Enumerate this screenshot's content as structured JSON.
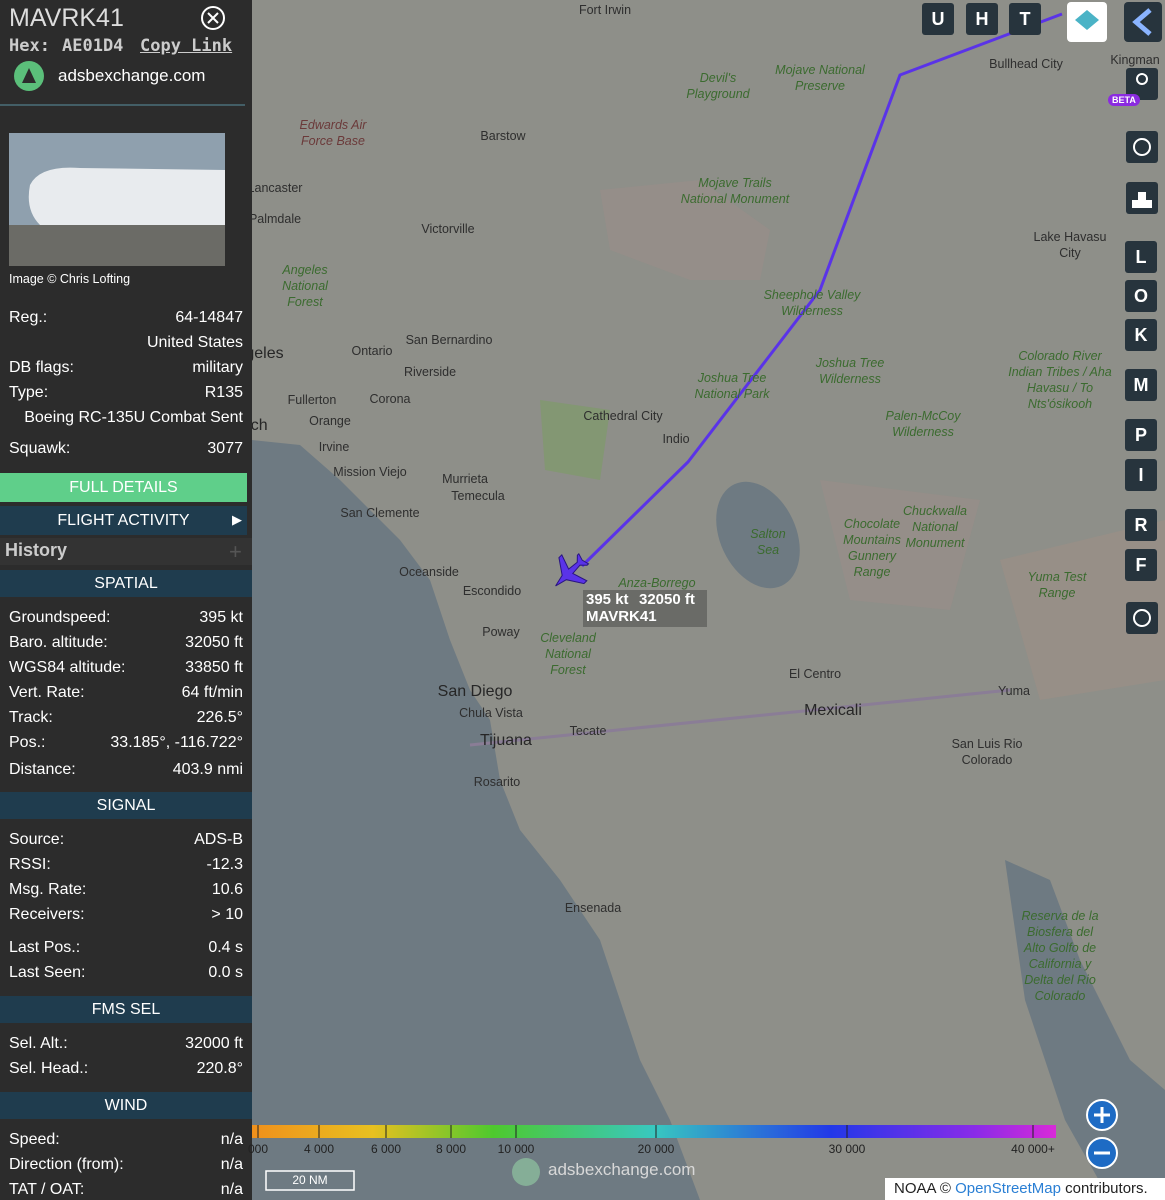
{
  "sidebar": {
    "callsign": "MAVRK41",
    "hex_label": "Hex:",
    "hex": "AE01D4",
    "copy_link": "Copy Link",
    "site": "adsbexchange.com",
    "image_credit": "Image © Chris Lofting",
    "details": [
      {
        "label": "Reg.:",
        "value": "64-14847"
      },
      {
        "value": "United States"
      },
      {
        "label": "DB flags:",
        "value": "military"
      },
      {
        "label": "Type:",
        "value": "R135"
      },
      {
        "value": "Boeing RC-135U Combat Sent"
      },
      {
        "label": "Squawk:",
        "value": "3077"
      }
    ],
    "full_details": "FULL DETAILS",
    "flight_activity": "FLIGHT ACTIVITY",
    "history": "History",
    "sections": [
      {
        "title": "SPATIAL",
        "rows": [
          {
            "label": "Groundspeed:",
            "value": "395 kt"
          },
          {
            "label": "Baro. altitude:",
            "value": "32050 ft"
          },
          {
            "label": "WGS84 altitude:",
            "value": "33850 ft"
          },
          {
            "label": "Vert. Rate:",
            "value": "64 ft/min"
          },
          {
            "label": "Track:",
            "value": "226.5°"
          },
          {
            "label": "Pos.:",
            "value": "33.185°, -116.722°"
          },
          {
            "label": "Distance:",
            "value": "403.9 nmi"
          }
        ]
      },
      {
        "title": "SIGNAL",
        "rows": [
          {
            "label": "Source:",
            "value": "ADS-B"
          },
          {
            "label": "RSSI:",
            "value": "-12.3"
          },
          {
            "label": "Msg. Rate:",
            "value": "10.6"
          },
          {
            "label": "Receivers:",
            "value": "> 10"
          },
          {
            "label": "Last Pos.:",
            "value": "0.4 s"
          },
          {
            "label": "Last Seen:",
            "value": "0.0 s"
          }
        ]
      },
      {
        "title": "FMS SEL",
        "rows": [
          {
            "label": "Sel. Alt.:",
            "value": "32000 ft"
          },
          {
            "label": "Sel. Head.:",
            "value": "220.8°"
          }
        ]
      },
      {
        "title": "WIND",
        "rows": [
          {
            "label": "Speed:",
            "value": "n/a"
          },
          {
            "label": "Direction (from):",
            "value": "n/a"
          },
          {
            "label": "TAT / OAT:",
            "value": "n/a"
          }
        ]
      }
    ]
  },
  "map": {
    "labels": [
      "Fort Irwin",
      "Devil's Playground",
      "Mojave National Preserve",
      "Bullhead City",
      "Kingman",
      "Edwards Air Force Base",
      "Barstow",
      "Mojave Trails National Monument",
      "Lancaster",
      "Palmdale",
      "Victorville",
      "Lake Havasu City",
      "Angeles National Forest",
      "Sheephole Valley Wilderness",
      "Ontario",
      "San Bernardino",
      "Los Angeles",
      "Riverside",
      "Joshua Tree Wilderness",
      "Colorado River Indian Tribes / Aha Havasu / To Nts'ósikooh",
      "Fullerton",
      "Corona",
      "Joshua Tree National Park",
      "Long Beach",
      "Orange",
      "Cathedral City",
      "Palen-McCoy Wilderness",
      "Indio",
      "Irvine",
      "Mission Viejo",
      "Murrieta",
      "Temecula",
      "San Clemente",
      "Salton Sea",
      "Chocolate Mountains Gunnery Range",
      "Chuckwalla National Monument",
      "Oceanside",
      "Escondido",
      "Anza-Borrego",
      "Yuma Test Range",
      "Poway",
      "Cleveland National Forest",
      "El Centro",
      "Yuma",
      "San Diego",
      "Mexicali",
      "Chula Vista",
      "Tecate",
      "Tijuana",
      "San Luis Rio Colorado",
      "Rosarito",
      "Ensenada",
      "Reserva de la Biosfera del Alto Golfo de California y Delta del Rio Colorado"
    ],
    "aircraft": {
      "speed": "395 kt",
      "altitude": "32050 ft",
      "callsign": "MAVRK41"
    },
    "buttons_top": [
      "U",
      "H",
      "T"
    ],
    "buttons_side": [
      "L",
      "O",
      "K",
      "M",
      "P",
      "I",
      "R",
      "F"
    ],
    "beta": "BETA",
    "altitude_scale": [
      "000",
      "4 000",
      "6 000",
      "8 000",
      "10 000",
      "20 000",
      "30 000",
      "40 000+"
    ],
    "scale_bar": "20 NM",
    "watermark": "adsbexchange.com",
    "attribution": {
      "prefix": "NOAA ©",
      "link": "OpenStreetMap",
      "suffix": "contributors."
    }
  }
}
